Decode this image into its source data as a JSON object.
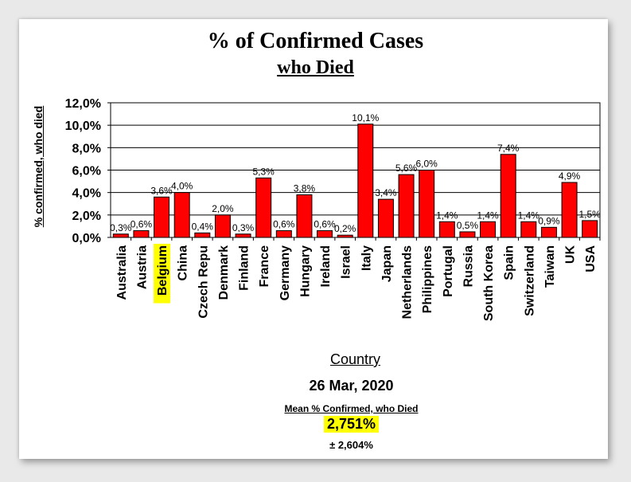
{
  "chart_data": {
    "type": "bar",
    "title": "% of Confirmed Cases",
    "subtitle": "who Died",
    "xlabel": "Country",
    "ylabel": "% confirmed, who died",
    "ylim": [
      0,
      12
    ],
    "yticks": [
      "0,0%",
      "2,0%",
      "4,0%",
      "6,0%",
      "8,0%",
      "10,0%",
      "12,0%"
    ],
    "grid": true,
    "bar_color": "#ff0000",
    "highlight_color": "#ffff00",
    "highlighted_category": "Belgium",
    "categories": [
      "Australia",
      "Austria",
      "Belgium",
      "China",
      "Czech Repu",
      "Denmark",
      "Finland",
      "France",
      "Germany",
      "Hungary",
      "Ireland",
      "Israel",
      "Italy",
      "Japan",
      "Netherlands",
      "Philippines",
      "Portugal",
      "Russia",
      "South Korea",
      "Spain",
      "Switzerland",
      "Taiwan",
      "UK",
      "USA"
    ],
    "values": [
      0.3,
      0.6,
      3.6,
      4.0,
      0.4,
      2.0,
      0.3,
      5.3,
      0.6,
      3.8,
      0.6,
      0.2,
      10.1,
      3.4,
      5.6,
      6.0,
      1.4,
      0.5,
      1.4,
      7.4,
      1.4,
      0.9,
      4.9,
      1.5
    ],
    "data_labels": [
      "0,3%",
      "0,6%",
      "3,6%",
      "4,0%",
      "0,4%",
      "2,0%",
      "0,3%",
      "5,3%",
      "0,6%",
      "3,8%",
      "0,6%",
      "0,2%",
      "10,1%",
      "3,4%",
      "5,6%",
      "6,0%",
      "1,4%",
      "0,5%",
      "1,4%",
      "7,4%",
      "1,4%",
      "0,9%",
      "4,9%",
      "1,5%"
    ]
  },
  "footer": {
    "date": "26 Mar, 2020",
    "mean_label": "Mean % Confirmed, who Died",
    "mean_value": "2,751%",
    "mean_sd": "± 2,604%"
  }
}
